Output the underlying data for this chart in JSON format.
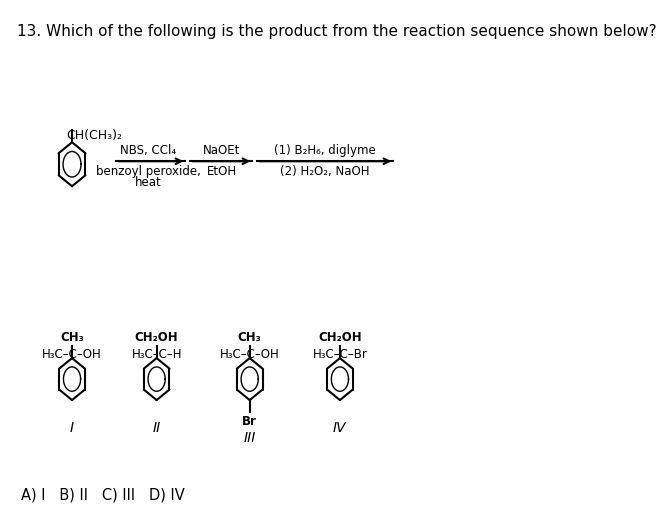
{
  "title": "13. Which of the following is the product from the reaction sequence shown below?",
  "title_fontsize": 11,
  "bg_color": "#ffffff",
  "text_color": "#000000",
  "answer_line": "A) I   B) II   C) III   D) IV",
  "reagent1_line1": "NBS, CCl₄",
  "reagent1_line2": "benzoyl peroxide,",
  "reagent1_line3": "heat",
  "reagent2_line1": "NaOEt",
  "reagent2_line2": "EtOH",
  "reagent3_line1": "(1) B₂H₆, diglyme",
  "reagent3_line2": "(2) H₂O₂, NaOH",
  "starting_material": "CH(CH₃)₂",
  "label_I": "I",
  "label_II": "II",
  "label_III": "III",
  "label_IV": "IV",
  "struct_I_top": "CH₃",
  "struct_I_mid": "H₃C–C–OH",
  "struct_II_top": "CH₂OH",
  "struct_II_mid": "H₃C–C–H",
  "struct_III_top": "CH₃",
  "struct_III_mid": "H₃C–C–OH",
  "struct_III_bot": "Br",
  "struct_IV_top": "CH₂OH",
  "struct_IV_mid": "H₃C–C–Br"
}
